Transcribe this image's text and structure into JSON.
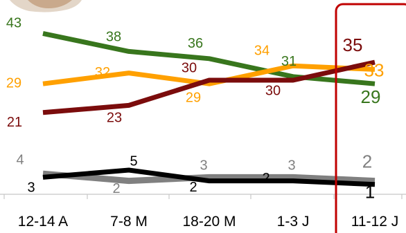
{
  "chart_data": {
    "type": "line",
    "title": "",
    "xlabel": "",
    "ylabel": "",
    "categories": [
      "12-14 A",
      "7-8 M",
      "18-20 M",
      "1-3 J",
      "11-12 J"
    ],
    "ylim": [
      0,
      45
    ],
    "grid": false,
    "legend": "none",
    "highlight_category": "11-12 J",
    "highlight_color": "#c00000",
    "series": [
      {
        "color": "#38761d",
        "values": [
          43,
          38,
          36,
          31,
          29
        ],
        "labels": [
          "43",
          "38",
          "36",
          "31",
          "29"
        ]
      },
      {
        "color": "#ffa000",
        "values": [
          29,
          32,
          29,
          34,
          33
        ],
        "labels": [
          "29",
          "32",
          "29",
          "34",
          "33"
        ]
      },
      {
        "color": "#7b0c0c",
        "values": [
          21,
          23,
          30,
          30,
          35
        ],
        "labels": [
          "21",
          "23",
          "30",
          "30",
          "35"
        ]
      },
      {
        "color": "#808080",
        "values": [
          4,
          2,
          3,
          3,
          2
        ],
        "labels": [
          "4",
          "2",
          "3",
          "3",
          "2"
        ]
      },
      {
        "color": "#000000",
        "values": [
          3,
          5,
          2,
          2,
          1
        ],
        "labels": [
          "3",
          "5",
          "2",
          "2",
          "1"
        ]
      }
    ]
  }
}
